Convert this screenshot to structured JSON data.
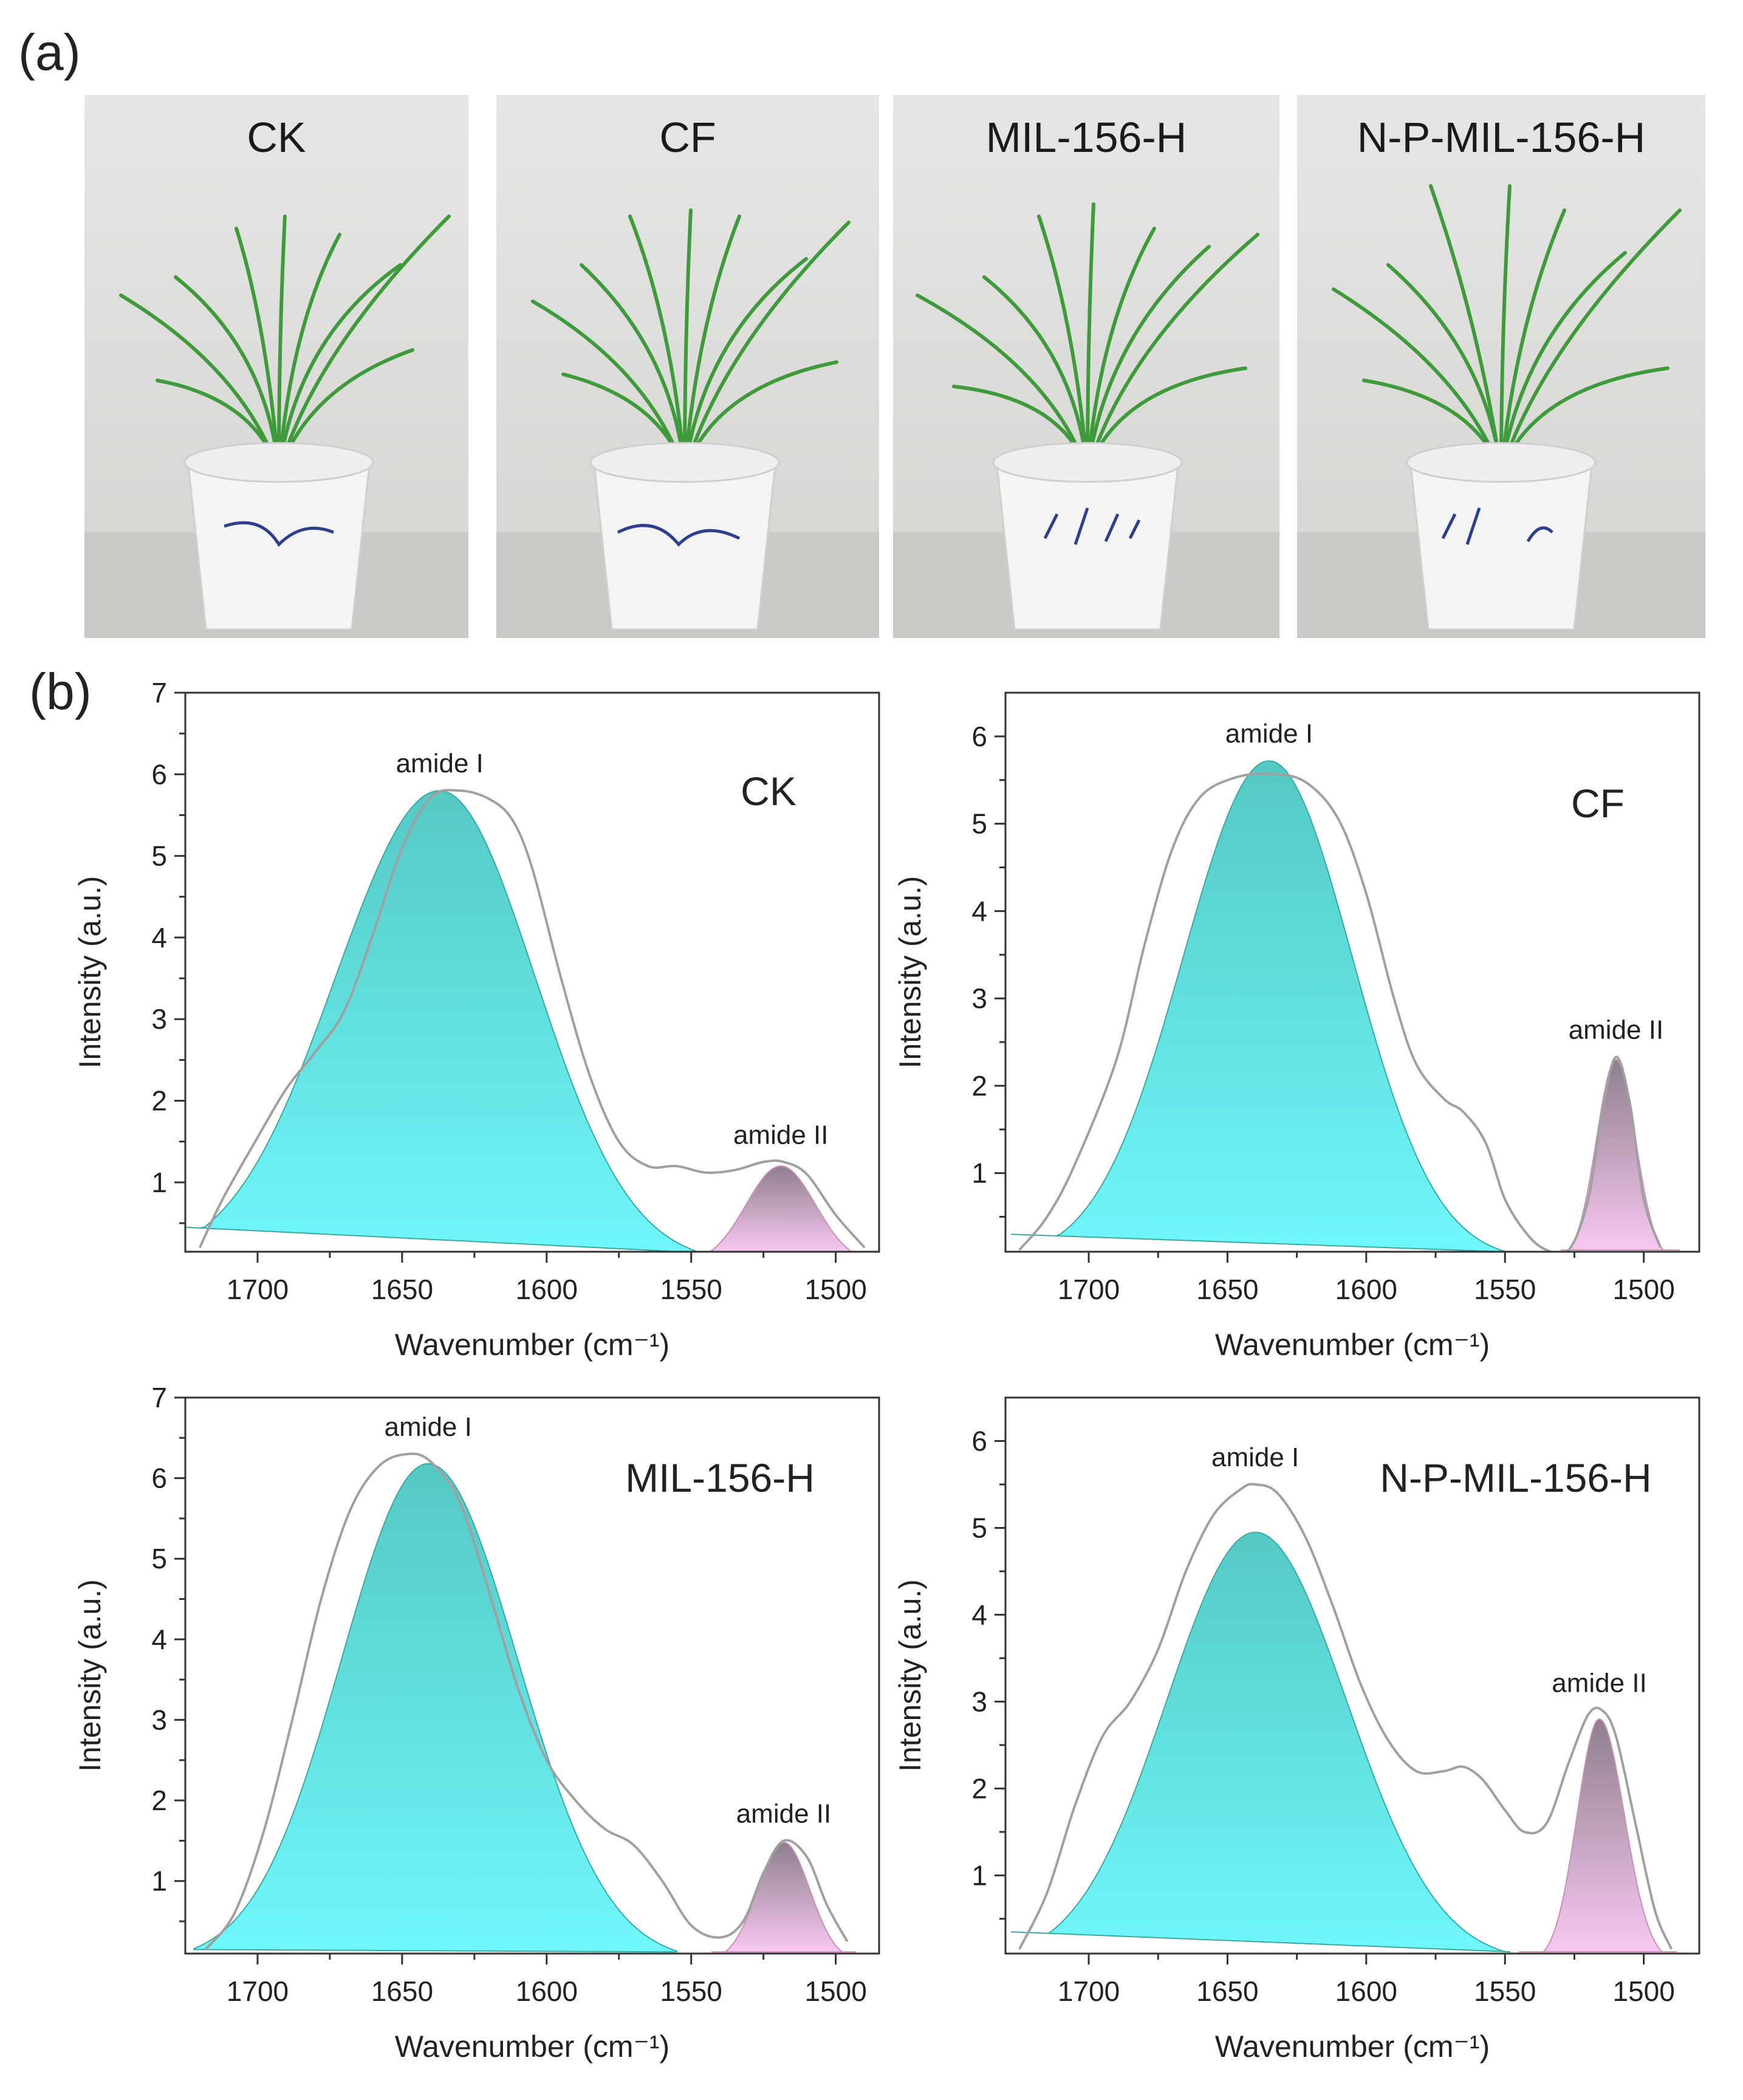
{
  "panel_a": {
    "label": "(a)",
    "photos": [
      {
        "title": "CK"
      },
      {
        "title": "CF"
      },
      {
        "title": "MIL-156-H"
      },
      {
        "title": "N-P-MIL-156-H"
      }
    ]
  },
  "panel_b": {
    "label": "(b)"
  },
  "colors": {
    "amide1_top": "#55c9c4",
    "amide1_bottom": "#6ff7fb",
    "amide2_top": "#8e7f8e",
    "amide2_bottom": "#f8c8f0",
    "raw_line": "#a0a0a0",
    "axis": "#333333"
  },
  "chart_data": [
    {
      "type": "area",
      "sample": "CK",
      "xlabel": "Wavenumber (cm⁻¹)",
      "ylabel": "Intensity (a.u.)",
      "xlim": [
        1725,
        1485
      ],
      "ylim": [
        0.15,
        7
      ],
      "x_ticks": [
        1700,
        1650,
        1600,
        1550,
        1500
      ],
      "y_ticks": [
        1,
        2,
        3,
        4,
        5,
        6,
        7
      ],
      "peaks": [
        {
          "name": "amide I",
          "center": 1637,
          "height": 5.8,
          "sigma_left": 33,
          "sigma_right": 36,
          "baseline_start": [
            1725,
            0.45
          ],
          "baseline_end": [
            1525,
            0.1
          ]
        },
        {
          "name": "amide II",
          "center": 1519,
          "height": 1.2,
          "sigma_left": 12,
          "sigma_right": 12,
          "baseline_start": [
            1550,
            0.15
          ],
          "baseline_end": [
            1488,
            0.15
          ]
        }
      ],
      "raw_line": [
        [
          1720,
          0.2
        ],
        [
          1712,
          0.8
        ],
        [
          1700,
          1.55
        ],
        [
          1690,
          2.15
        ],
        [
          1680,
          2.6
        ],
        [
          1670,
          3.1
        ],
        [
          1660,
          4.05
        ],
        [
          1650,
          5.1
        ],
        [
          1640,
          5.72
        ],
        [
          1630,
          5.8
        ],
        [
          1620,
          5.7
        ],
        [
          1612,
          5.45
        ],
        [
          1605,
          4.85
        ],
        [
          1595,
          3.5
        ],
        [
          1585,
          2.3
        ],
        [
          1575,
          1.5
        ],
        [
          1565,
          1.2
        ],
        [
          1555,
          1.2
        ],
        [
          1545,
          1.12
        ],
        [
          1535,
          1.15
        ],
        [
          1525,
          1.25
        ],
        [
          1518,
          1.25
        ],
        [
          1510,
          1.1
        ],
        [
          1500,
          0.6
        ],
        [
          1490,
          0.2
        ]
      ]
    },
    {
      "type": "area",
      "sample": "CF",
      "xlabel": "Wavenumber (cm⁻¹)",
      "ylabel": "Intensity (a.u.)",
      "xlim": [
        1730,
        1480
      ],
      "ylim": [
        0.1,
        6.5
      ],
      "x_ticks": [
        1700,
        1650,
        1600,
        1550,
        1500
      ],
      "y_ticks": [
        1,
        2,
        3,
        4,
        5,
        6
      ],
      "peaks": [
        {
          "name": "amide I",
          "center": 1635,
          "height": 5.72,
          "sigma_left": 30,
          "sigma_right": 31,
          "baseline_start": [
            1728,
            0.3
          ],
          "baseline_end": [
            1533,
            0.08
          ]
        },
        {
          "name": "amide II",
          "center": 1510,
          "height": 2.3,
          "sigma_left": 7,
          "sigma_right": 7,
          "baseline_start": [
            1530,
            0.12
          ],
          "baseline_end": [
            1487,
            0.12
          ]
        }
      ],
      "raw_line": [
        [
          1725,
          0.12
        ],
        [
          1715,
          0.5
        ],
        [
          1705,
          1.1
        ],
        [
          1690,
          2.3
        ],
        [
          1680,
          3.6
        ],
        [
          1670,
          4.7
        ],
        [
          1660,
          5.3
        ],
        [
          1648,
          5.52
        ],
        [
          1635,
          5.57
        ],
        [
          1622,
          5.48
        ],
        [
          1610,
          5.05
        ],
        [
          1600,
          4.2
        ],
        [
          1590,
          3.0
        ],
        [
          1582,
          2.25
        ],
        [
          1572,
          1.85
        ],
        [
          1565,
          1.7
        ],
        [
          1557,
          1.35
        ],
        [
          1550,
          0.7
        ],
        [
          1542,
          0.3
        ],
        [
          1535,
          0.12
        ],
        [
          1527,
          0.12
        ],
        [
          1520,
          0.7
        ],
        [
          1515,
          1.7
        ],
        [
          1510,
          2.33
        ],
        [
          1505,
          1.8
        ],
        [
          1500,
          0.7
        ],
        [
          1494,
          0.15
        ]
      ]
    },
    {
      "type": "area",
      "sample": "MIL-156-H",
      "xlabel": "Wavenumber (cm⁻¹)",
      "ylabel": "Intensity (a.u.)",
      "xlim": [
        1725,
        1485
      ],
      "ylim": [
        0.1,
        7
      ],
      "x_ticks": [
        1700,
        1650,
        1600,
        1550,
        1500
      ],
      "y_ticks": [
        1,
        2,
        3,
        4,
        5,
        6,
        7
      ],
      "peaks": [
        {
          "name": "amide I",
          "center": 1641,
          "height": 6.18,
          "sigma_left": 31,
          "sigma_right": 30,
          "baseline_start": [
            1722,
            0.15
          ],
          "baseline_end": [
            1555,
            0.12
          ]
        },
        {
          "name": "amide II",
          "center": 1518,
          "height": 1.48,
          "sigma_left": 9,
          "sigma_right": 9,
          "baseline_start": [
            1543,
            0.12
          ],
          "baseline_end": [
            1493,
            0.12
          ]
        }
      ],
      "raw_line": [
        [
          1718,
          0.15
        ],
        [
          1708,
          0.6
        ],
        [
          1698,
          1.6
        ],
        [
          1688,
          3.0
        ],
        [
          1678,
          4.5
        ],
        [
          1668,
          5.6
        ],
        [
          1658,
          6.15
        ],
        [
          1648,
          6.3
        ],
        [
          1640,
          6.2
        ],
        [
          1630,
          5.7
        ],
        [
          1620,
          4.6
        ],
        [
          1610,
          3.4
        ],
        [
          1600,
          2.5
        ],
        [
          1590,
          2.0
        ],
        [
          1580,
          1.65
        ],
        [
          1570,
          1.45
        ],
        [
          1560,
          1.0
        ],
        [
          1550,
          0.45
        ],
        [
          1540,
          0.3
        ],
        [
          1532,
          0.5
        ],
        [
          1525,
          1.1
        ],
        [
          1518,
          1.5
        ],
        [
          1510,
          1.3
        ],
        [
          1503,
          0.7
        ],
        [
          1496,
          0.25
        ]
      ]
    },
    {
      "type": "area",
      "sample": "N-P-MIL-156-H",
      "xlabel": "Wavenumber (cm⁻¹)",
      "ylabel": "Intensity (a.u.)",
      "xlim": [
        1730,
        1480
      ],
      "ylim": [
        0.1,
        6.5
      ],
      "x_ticks": [
        1700,
        1650,
        1600,
        1550,
        1500
      ],
      "y_ticks": [
        1,
        2,
        3,
        4,
        5,
        6
      ],
      "peaks": [
        {
          "name": "amide I",
          "center": 1640,
          "height": 4.95,
          "sigma_left": 33,
          "sigma_right": 32,
          "baseline_start": [
            1728,
            0.35
          ],
          "baseline_end": [
            1548,
            0.12
          ]
        },
        {
          "name": "amide II",
          "center": 1516,
          "height": 2.8,
          "sigma_left": 9,
          "sigma_right": 8,
          "baseline_start": [
            1545,
            0.12
          ],
          "baseline_end": [
            1488,
            0.12
          ]
        }
      ],
      "raw_line": [
        [
          1725,
          0.15
        ],
        [
          1715,
          0.8
        ],
        [
          1705,
          1.8
        ],
        [
          1695,
          2.6
        ],
        [
          1685,
          3.0
        ],
        [
          1675,
          3.6
        ],
        [
          1665,
          4.5
        ],
        [
          1655,
          5.15
        ],
        [
          1645,
          5.45
        ],
        [
          1640,
          5.5
        ],
        [
          1632,
          5.4
        ],
        [
          1622,
          4.9
        ],
        [
          1612,
          4.1
        ],
        [
          1602,
          3.2
        ],
        [
          1592,
          2.55
        ],
        [
          1582,
          2.2
        ],
        [
          1572,
          2.2
        ],
        [
          1565,
          2.25
        ],
        [
          1558,
          2.1
        ],
        [
          1550,
          1.75
        ],
        [
          1543,
          1.5
        ],
        [
          1535,
          1.6
        ],
        [
          1527,
          2.3
        ],
        [
          1520,
          2.85
        ],
        [
          1515,
          2.9
        ],
        [
          1510,
          2.6
        ],
        [
          1503,
          1.6
        ],
        [
          1496,
          0.6
        ],
        [
          1490,
          0.15
        ]
      ]
    }
  ]
}
